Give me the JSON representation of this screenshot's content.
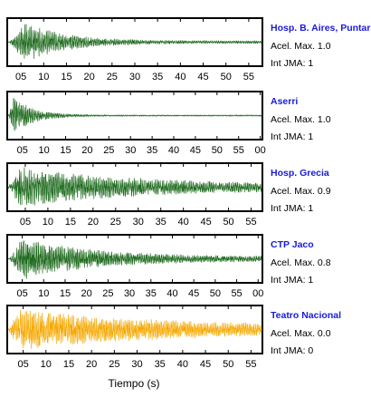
{
  "chart_data": {
    "type": "line",
    "xlabel": "Tiempo (s)",
    "accel_prefix": "Acel. Max.",
    "jma_prefix": "Int JMA:",
    "colors": {
      "frame": "#000000",
      "station_name": "#1a1adb",
      "wave_green": "#1f6b1f",
      "wave_orange": "#f5a800"
    },
    "panels": [
      {
        "station": "Hosp. B. Aires, Puntare",
        "accel_max": "1.0",
        "jma": "1",
        "color": "#1f6b1f",
        "ticks": [
          "05",
          "10",
          "15",
          "20",
          "25",
          "30",
          "35",
          "40",
          "45",
          "50",
          "55"
        ],
        "tick_values": [
          5,
          10,
          15,
          20,
          25,
          30,
          35,
          40,
          45,
          50,
          55
        ],
        "xlim": [
          2,
          58
        ],
        "wave": {
          "onset": 2.5,
          "peak": 6,
          "amp": 0.9,
          "decay": 0.11,
          "floor": 0.06,
          "seed": 11
        }
      },
      {
        "station": "Aserri",
        "accel_max": "1.0",
        "jma": "1",
        "color": "#1f6b1f",
        "ticks": [
          "05",
          "10",
          "15",
          "20",
          "25",
          "30",
          "35",
          "40",
          "45",
          "50",
          "55",
          "00"
        ],
        "tick_values": [
          5,
          10,
          15,
          20,
          25,
          30,
          35,
          40,
          45,
          50,
          55,
          60
        ],
        "xlim": [
          1.5,
          60.5
        ],
        "wave": {
          "onset": 1.8,
          "peak": 3,
          "amp": 0.85,
          "decay": 0.22,
          "floor": 0.03,
          "seed": 23
        }
      },
      {
        "station": "Hosp. Grecia",
        "accel_max": "0.9",
        "jma": "1",
        "color": "#1f6b1f",
        "ticks": [
          "05",
          "10",
          "15",
          "20",
          "25",
          "30",
          "35",
          "40",
          "45",
          "50",
          "55"
        ],
        "tick_values": [
          5,
          10,
          15,
          20,
          25,
          30,
          35,
          40,
          45,
          50,
          55
        ],
        "xlim": [
          1,
          57.5
        ],
        "wave": {
          "onset": 1.2,
          "peak": 4,
          "amp": 0.95,
          "decay": 0.04,
          "floor": 0.12,
          "seed": 37
        }
      },
      {
        "station": "CTP Jaco",
        "accel_max": "0.8",
        "jma": "1",
        "color": "#1f6b1f",
        "ticks": [
          "05",
          "10",
          "15",
          "20",
          "25",
          "30",
          "35",
          "40",
          "45",
          "50",
          "55",
          "00"
        ],
        "tick_values": [
          5,
          10,
          15,
          20,
          25,
          30,
          35,
          40,
          45,
          50,
          55,
          60
        ],
        "xlim": [
          1.5,
          61
        ],
        "wave": {
          "onset": 2,
          "peak": 5,
          "amp": 0.95,
          "decay": 0.06,
          "floor": 0.1,
          "seed": 51
        }
      },
      {
        "station": "Teatro Nacional",
        "accel_max": "0.0",
        "jma": "0",
        "color": "#f5a800",
        "ticks": [
          "05",
          "10",
          "15",
          "20",
          "25",
          "30",
          "35",
          "40",
          "45",
          "50",
          "55"
        ],
        "tick_values": [
          5,
          10,
          15,
          20,
          25,
          30,
          35,
          40,
          45,
          50,
          55
        ],
        "xlim": [
          1.5,
          57.5
        ],
        "wave": {
          "onset": 1.8,
          "peak": 4,
          "amp": 0.95,
          "decay": 0.035,
          "floor": 0.18,
          "seed": 67
        }
      }
    ]
  }
}
